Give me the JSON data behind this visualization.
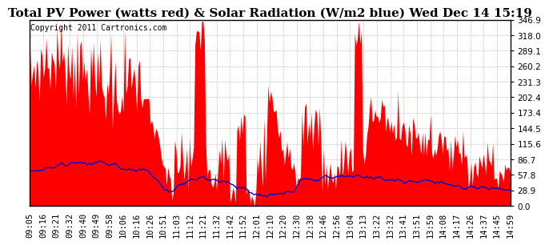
{
  "title": "Total PV Power (watts red) & Solar Radiation (W/m2 blue) Wed Dec 14 15:19",
  "copyright": "Copyright 2011 Cartronics.com",
  "yticks": [
    0.0,
    28.9,
    57.8,
    86.7,
    115.6,
    144.5,
    173.4,
    202.4,
    231.3,
    260.2,
    289.1,
    318.0,
    346.9
  ],
  "ymax": 346.9,
  "ymin": 0.0,
  "pv_color": "#ff0000",
  "solar_color": "#0000cc",
  "bg_color": "#ffffff",
  "grid_color": "#aaaaaa",
  "title_fontsize": 11,
  "copyright_fontsize": 7,
  "tick_fontsize": 7.5,
  "xtick_labels": [
    "09:05",
    "09:16",
    "09:21",
    "09:32",
    "09:40",
    "09:49",
    "09:58",
    "10:06",
    "10:16",
    "10:26",
    "10:51",
    "11:03",
    "11:12",
    "11:21",
    "11:32",
    "11:42",
    "11:52",
    "12:01",
    "12:10",
    "12:20",
    "12:30",
    "12:38",
    "12:46",
    "12:56",
    "13:04",
    "13:13",
    "13:22",
    "13:32",
    "13:41",
    "13:51",
    "13:59",
    "14:08",
    "14:17",
    "14:26",
    "14:37",
    "14:45",
    "14:59"
  ]
}
